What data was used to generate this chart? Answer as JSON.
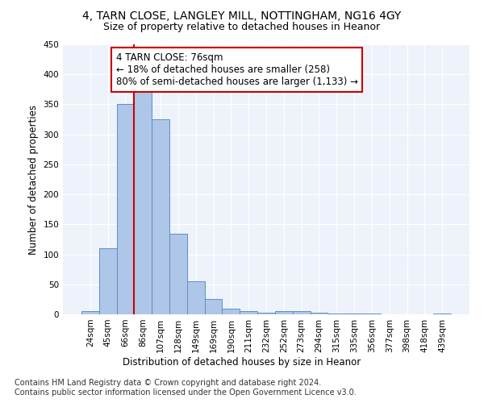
{
  "title_line1": "4, TARN CLOSE, LANGLEY MILL, NOTTINGHAM, NG16 4GY",
  "title_line2": "Size of property relative to detached houses in Heanor",
  "xlabel": "Distribution of detached houses by size in Heanor",
  "ylabel": "Number of detached properties",
  "categories": [
    "24sqm",
    "45sqm",
    "66sqm",
    "86sqm",
    "107sqm",
    "128sqm",
    "149sqm",
    "169sqm",
    "190sqm",
    "211sqm",
    "232sqm",
    "252sqm",
    "273sqm",
    "294sqm",
    "315sqm",
    "335sqm",
    "356sqm",
    "377sqm",
    "398sqm",
    "418sqm",
    "439sqm"
  ],
  "values": [
    5,
    110,
    350,
    375,
    325,
    135,
    55,
    25,
    10,
    5,
    3,
    5,
    5,
    3,
    2,
    1,
    1,
    0,
    0,
    0,
    2
  ],
  "bar_color": "#aec6e8",
  "bar_edge_color": "#5b8fc9",
  "vline_color": "#cc0000",
  "annotation_text": "4 TARN CLOSE: 76sqm\n← 18% of detached houses are smaller (258)\n80% of semi-detached houses are larger (1,133) →",
  "annotation_box_color": "#ffffff",
  "annotation_box_edge": "#cc0000",
  "ylim": [
    0,
    450
  ],
  "yticks": [
    0,
    50,
    100,
    150,
    200,
    250,
    300,
    350,
    400,
    450
  ],
  "footer_line1": "Contains HM Land Registry data © Crown copyright and database right 2024.",
  "footer_line2": "Contains public sector information licensed under the Open Government Licence v3.0.",
  "bg_color": "#eef2fb",
  "title_fontsize": 10,
  "subtitle_fontsize": 9,
  "axis_label_fontsize": 8.5,
  "tick_fontsize": 7.5,
  "annotation_fontsize": 8.5,
  "footer_fontsize": 7
}
